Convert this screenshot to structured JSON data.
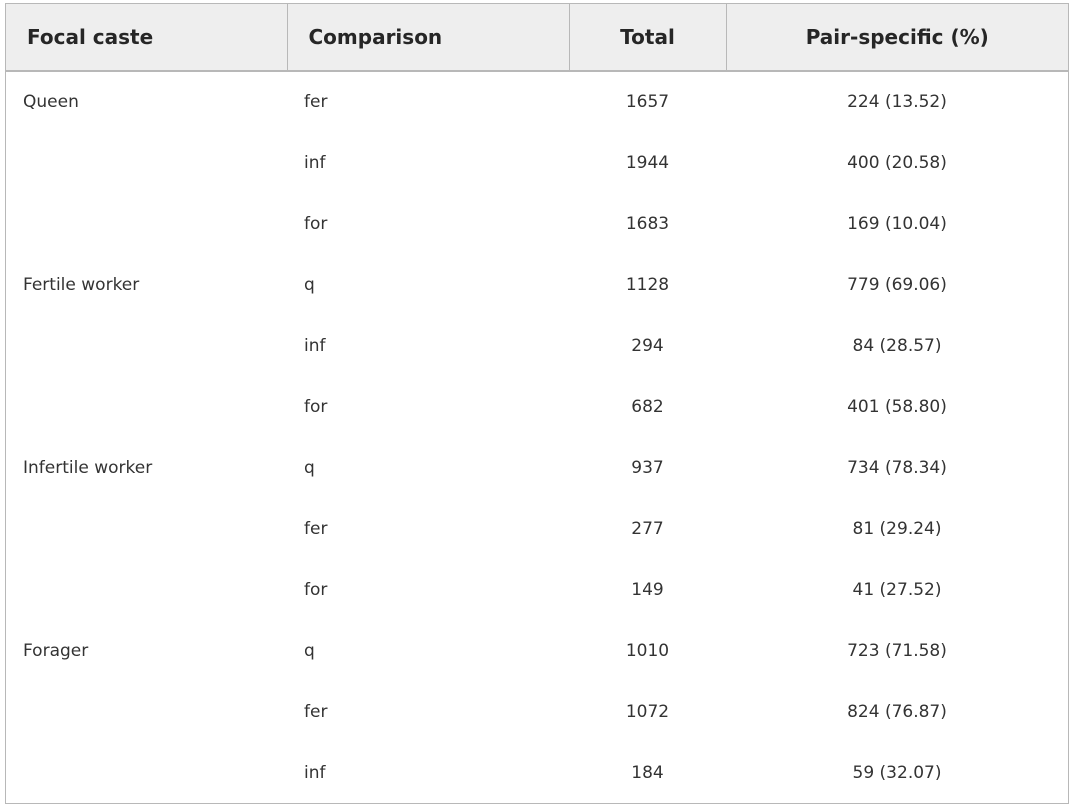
{
  "table": {
    "headers": [
      "Focal caste",
      "Comparison",
      "Total",
      "Pair-specific (%)"
    ],
    "rows": [
      {
        "caste": "Queen",
        "comparison": "fer",
        "total": "1657",
        "pair_specific": "224 (13.52)"
      },
      {
        "caste": "",
        "comparison": "inf",
        "total": "1944",
        "pair_specific": "400 (20.58)"
      },
      {
        "caste": "",
        "comparison": "for",
        "total": "1683",
        "pair_specific": "169 (10.04)"
      },
      {
        "caste": "Fertile worker",
        "comparison": "q",
        "total": "1128",
        "pair_specific": "779 (69.06)"
      },
      {
        "caste": "",
        "comparison": "inf",
        "total": "294",
        "pair_specific": "84 (28.57)"
      },
      {
        "caste": "",
        "comparison": "for",
        "total": "682",
        "pair_specific": "401 (58.80)"
      },
      {
        "caste": "Infertile worker",
        "comparison": "q",
        "total": "937",
        "pair_specific": "734 (78.34)"
      },
      {
        "caste": "",
        "comparison": "fer",
        "total": "277",
        "pair_specific": "81 (29.24)"
      },
      {
        "caste": "",
        "comparison": "for",
        "total": "149",
        "pair_specific": "41 (27.52)"
      },
      {
        "caste": "Forager",
        "comparison": "q",
        "total": "1010",
        "pair_specific": "723 (71.58)"
      },
      {
        "caste": "",
        "comparison": "fer",
        "total": "1072",
        "pair_specific": "824 (76.87)"
      },
      {
        "caste": "",
        "comparison": "inf",
        "total": "184",
        "pair_specific": "59 (32.07)"
      }
    ]
  },
  "colors": {
    "header_background": "#eeeeee",
    "border": "#b8b8b8",
    "text": "#333333"
  }
}
